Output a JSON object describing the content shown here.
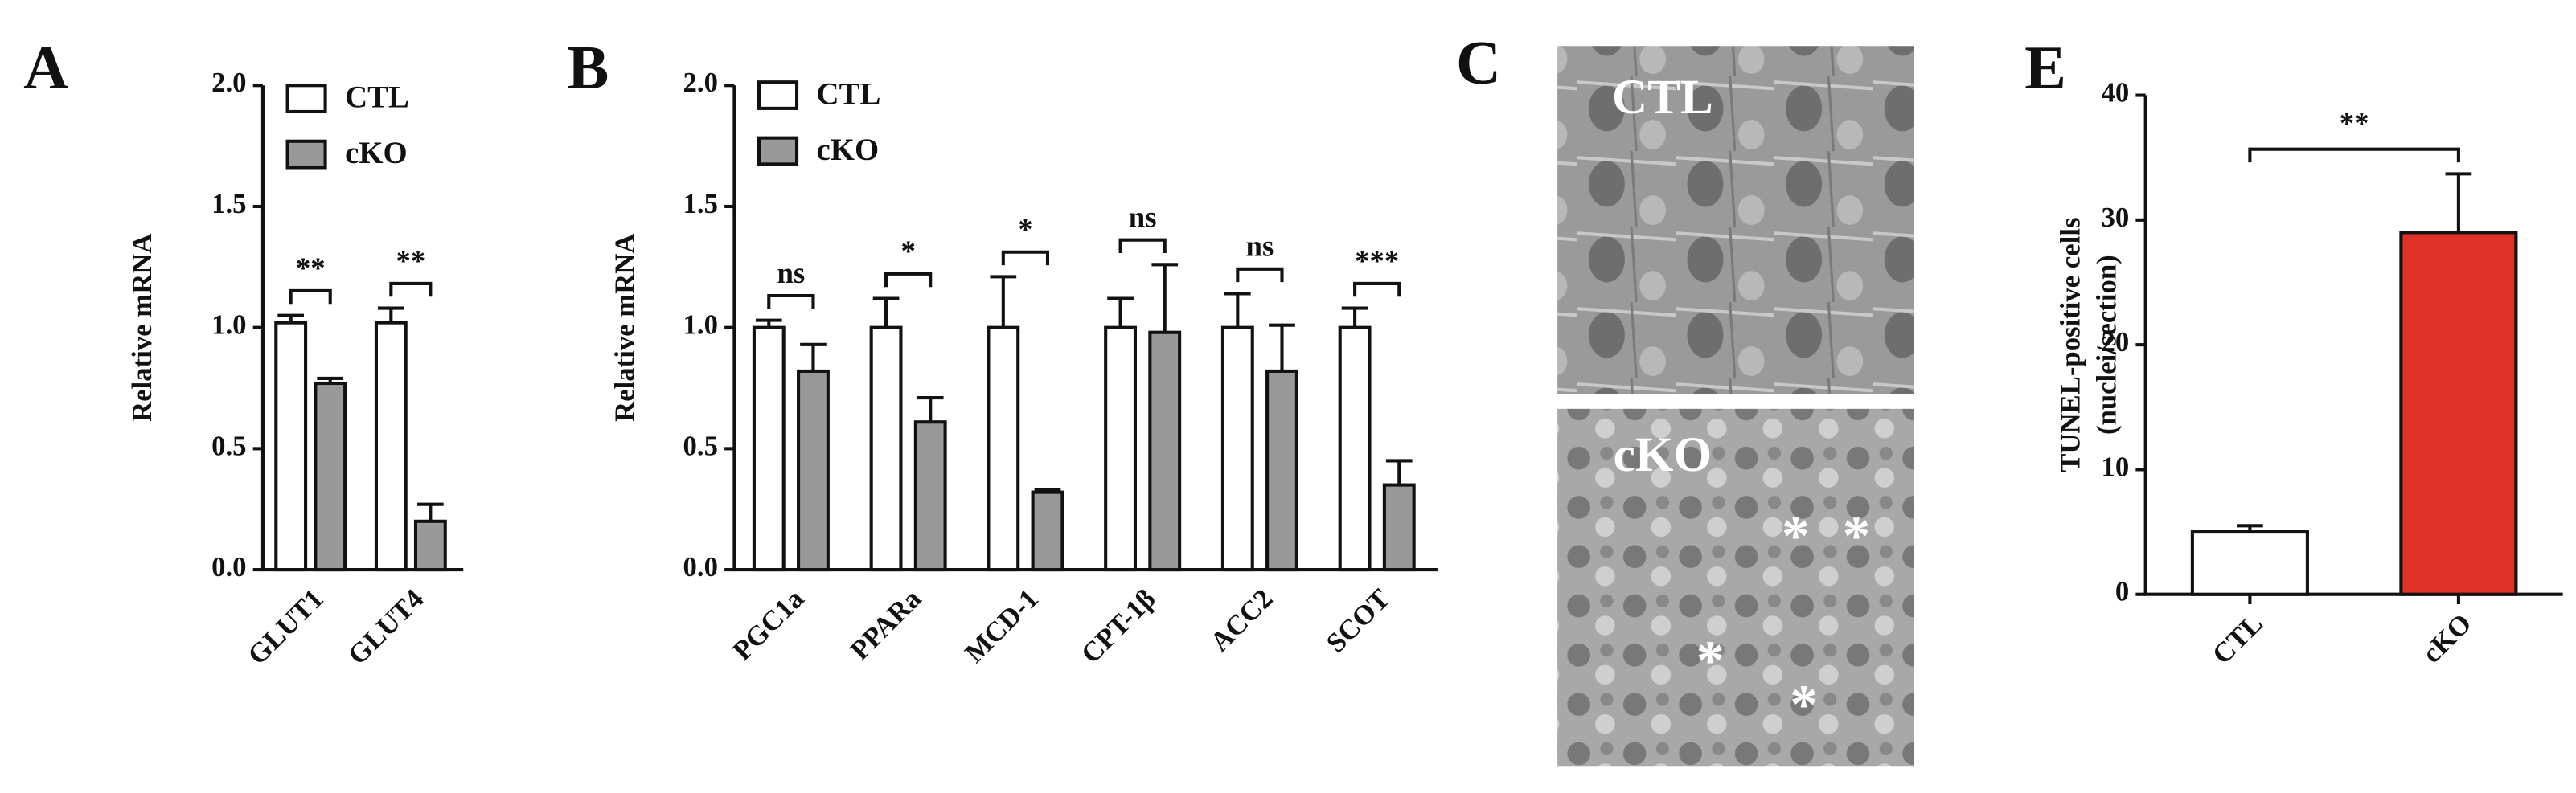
{
  "chart_data": [
    {
      "type": "bar",
      "panel_label": "A",
      "y_label": "Relative mRNA",
      "categories": [
        "GLUT1",
        "GLUT4"
      ],
      "series": [
        {
          "name": "CTL",
          "color": "#ffffff",
          "values": [
            1.02,
            1.02
          ],
          "errors": [
            0.03,
            0.06
          ]
        },
        {
          "name": "cKO",
          "color": "#999999",
          "values": [
            0.77,
            0.2
          ],
          "errors": [
            0.02,
            0.07
          ]
        }
      ],
      "annotations": [
        "**",
        "**"
      ],
      "ylim": [
        0,
        2
      ],
      "yticks": [
        {
          "value": 0,
          "label": "0.0"
        },
        {
          "value": 0.5,
          "label": "0.5"
        },
        {
          "value": 1,
          "label": "1.0"
        },
        {
          "value": 1.5,
          "label": "1.5"
        },
        {
          "value": 2,
          "label": "2.0"
        }
      ],
      "legend": "top-left"
    },
    {
      "type": "bar",
      "panel_label": "B",
      "y_label": "Relative mRNA",
      "categories": [
        "PGC1a",
        "PPARa",
        "MCD-1",
        "CPT-1β",
        "ACC2",
        "SCOT"
      ],
      "series": [
        {
          "name": "CTL",
          "color": "#ffffff",
          "values": [
            1.0,
            1.0,
            1.0,
            1.0,
            1.0,
            1.0
          ],
          "errors": [
            0.03,
            0.12,
            0.21,
            0.12,
            0.14,
            0.08
          ]
        },
        {
          "name": "cKO",
          "color": "#999999",
          "values": [
            0.82,
            0.61,
            0.32,
            0.98,
            0.82,
            0.35
          ],
          "errors": [
            0.11,
            0.1,
            0.01,
            0.28,
            0.19,
            0.1
          ]
        }
      ],
      "annotations": [
        "ns",
        "*",
        "*",
        "ns",
        "ns",
        "***"
      ],
      "ylim": [
        0,
        2
      ],
      "yticks": [
        {
          "value": 0,
          "label": "0.0"
        },
        {
          "value": 0.5,
          "label": "0.5"
        },
        {
          "value": 1,
          "label": "1.0"
        },
        {
          "value": 1.5,
          "label": "1.5"
        },
        {
          "value": 2,
          "label": "2.0"
        }
      ],
      "legend": "top-left"
    },
    {
      "type": "bar",
      "panel_label": "E",
      "y_label": [
        "TUNEL-positive cells",
        "(nuclei/section)"
      ],
      "categories": [
        "CTL",
        "cKO"
      ],
      "values": [
        5,
        29
      ],
      "errors": [
        0.5,
        4.7
      ],
      "colors": [
        "#ffffff",
        "#e0302a"
      ],
      "annotation": "**",
      "ylim": [
        0,
        40
      ],
      "yticks": [
        0,
        10,
        20,
        30,
        40
      ]
    }
  ],
  "panel_c": {
    "panel_label": "C",
    "images": [
      {
        "label": "CTL",
        "markers": []
      },
      {
        "label": "cKO",
        "markers": [
          "*",
          "*",
          "*",
          "*"
        ]
      }
    ]
  }
}
